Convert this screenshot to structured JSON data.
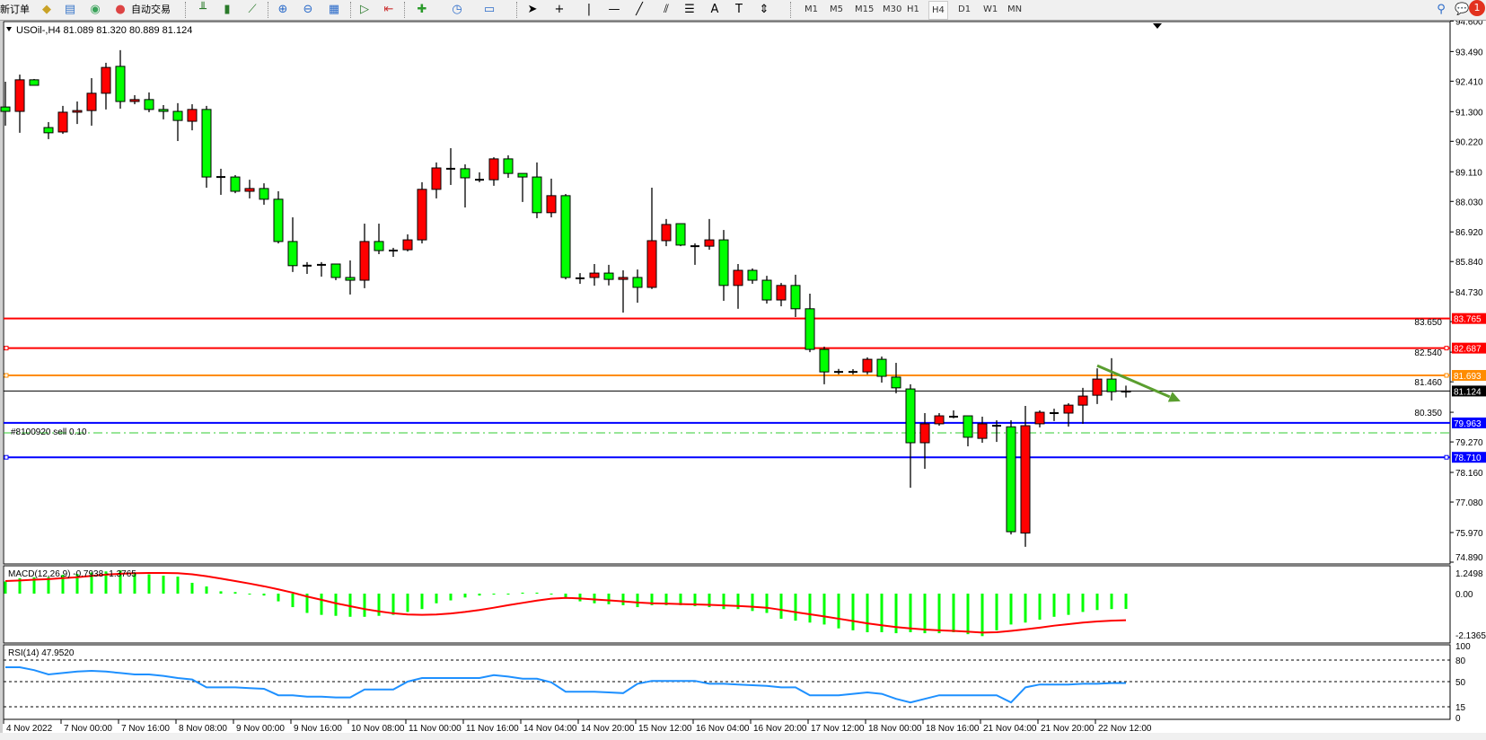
{
  "toolbar": {
    "new_order": "新订单",
    "auto_trading": "自动交易",
    "timeframes": [
      "M1",
      "M5",
      "M15",
      "M30",
      "H1",
      "H4",
      "D1",
      "W1",
      "MN"
    ],
    "active_timeframe": "H4",
    "notification_count": "1",
    "icons": [
      "folder-icon",
      "market-watch-icon",
      "signal-icon",
      "auto-trading-icon",
      "bar-chart-icon",
      "candlestick-icon",
      "line-chart-icon",
      "zoom-in-icon",
      "zoom-out-icon",
      "tile-windows-icon",
      "autoscroll-icon",
      "chart-shift-icon",
      "indicators-icon",
      "periods-icon",
      "templates-icon",
      "cursor-icon",
      "crosshair-icon",
      "vertical-line-icon",
      "horizontal-line-icon",
      "trendline-icon",
      "equidistant-channel-icon",
      "fibonacci-icon",
      "text-icon",
      "text-label-icon",
      "arrows-icon",
      "search-icon",
      "notification-icon"
    ]
  },
  "chart_header": "USOil-,H4  81.089 81.320 80.889 81.124",
  "order_label": "#8100920 sell 0.10",
  "macd_label": "MACD(12,26,9) -0.7938 -1.3765",
  "rsi_label": "RSI(14) 47.9520",
  "colors": {
    "bull": "#ff0000",
    "bear": "#00ff00",
    "macd_hist": "#00ff00",
    "macd_signal": "#ff0000",
    "rsi": "#1e90ff",
    "arrow": "#5a9e2f"
  },
  "chart_data": {
    "type": "candlestick",
    "symbol": "USOil-",
    "timeframe": "H4",
    "ylim": [
      74.89,
      94.6
    ],
    "y_ticks": [
      "94.600",
      "93.490",
      "92.410",
      "91.300",
      "90.220",
      "89.110",
      "88.030",
      "86.920",
      "85.840",
      "84.730",
      "83.650",
      "82.540",
      "81.460",
      "80.350",
      "79.270",
      "78.160",
      "77.080",
      "75.970",
      "74.890"
    ],
    "x_tick_labels": [
      "4 Nov 2022",
      "7 Nov 00:00",
      "7 Nov 16:00",
      "8 Nov 08:00",
      "9 Nov 00:00",
      "9 Nov 16:00",
      "10 Nov 08:00",
      "11 Nov 00:00",
      "11 Nov 16:00",
      "14 Nov 04:00",
      "14 Nov 20:00",
      "15 Nov 12:00",
      "16 Nov 04:00",
      "16 Nov 20:00",
      "17 Nov 12:00",
      "18 Nov 00:00",
      "18 Nov 16:00",
      "21 Nov 04:00",
      "21 Nov 20:00",
      "22 Nov 12:00"
    ],
    "x_tick_every_bars": 4,
    "ohlc": [
      [
        91.47,
        92.39,
        90.79,
        91.31
      ],
      [
        91.31,
        92.65,
        90.53,
        92.46
      ],
      [
        92.46,
        92.49,
        92.26,
        92.26
      ],
      [
        90.72,
        90.92,
        90.3,
        90.53
      ],
      [
        90.56,
        91.51,
        90.49,
        91.28
      ],
      [
        91.28,
        91.67,
        90.85,
        91.34
      ],
      [
        91.34,
        92.52,
        90.79,
        91.97
      ],
      [
        91.97,
        93.08,
        91.38,
        92.91
      ],
      [
        92.95,
        93.54,
        91.41,
        91.67
      ],
      [
        91.67,
        91.9,
        91.57,
        91.74
      ],
      [
        91.74,
        92.0,
        91.28,
        91.38
      ],
      [
        91.38,
        91.54,
        91.02,
        91.31
      ],
      [
        91.31,
        91.61,
        90.23,
        90.98
      ],
      [
        90.95,
        91.57,
        90.62,
        91.38
      ],
      [
        91.38,
        91.51,
        88.53,
        88.92
      ],
      [
        88.92,
        89.22,
        88.27,
        88.92
      ],
      [
        88.92,
        88.99,
        88.33,
        88.4
      ],
      [
        88.4,
        88.82,
        88.14,
        88.5
      ],
      [
        88.5,
        88.69,
        87.91,
        88.11
      ],
      [
        88.11,
        88.4,
        86.5,
        86.57
      ],
      [
        86.57,
        87.45,
        85.46,
        85.69
      ],
      [
        85.69,
        85.82,
        85.39,
        85.69
      ],
      [
        85.72,
        85.82,
        85.29,
        85.72
      ],
      [
        85.75,
        85.75,
        85.16,
        85.26
      ],
      [
        85.26,
        85.88,
        84.64,
        85.16
      ],
      [
        85.16,
        87.22,
        84.87,
        86.57
      ],
      [
        86.57,
        87.22,
        86.11,
        86.24
      ],
      [
        86.24,
        86.34,
        86.01,
        86.24
      ],
      [
        86.27,
        86.83,
        86.21,
        86.63
      ],
      [
        86.63,
        88.73,
        86.5,
        88.47
      ],
      [
        88.47,
        89.45,
        88.14,
        89.25
      ],
      [
        89.22,
        89.97,
        88.63,
        89.22
      ],
      [
        89.22,
        89.38,
        87.81,
        88.89
      ],
      [
        88.82,
        89.09,
        88.73,
        88.82
      ],
      [
        88.82,
        89.64,
        88.6,
        89.58
      ],
      [
        89.58,
        89.71,
        88.89,
        89.05
      ],
      [
        89.05,
        89.05,
        88.01,
        88.92
      ],
      [
        88.92,
        89.45,
        87.42,
        87.62
      ],
      [
        87.62,
        88.86,
        87.45,
        88.24
      ],
      [
        88.24,
        88.3,
        85.19,
        85.26
      ],
      [
        85.23,
        85.42,
        85.03,
        85.23
      ],
      [
        85.26,
        85.75,
        84.96,
        85.42
      ],
      [
        85.42,
        85.72,
        84.97,
        85.19
      ],
      [
        85.19,
        85.52,
        83.98,
        85.26
      ],
      [
        85.26,
        85.55,
        84.34,
        84.9
      ],
      [
        84.9,
        88.53,
        84.84,
        86.6
      ],
      [
        86.6,
        87.39,
        86.4,
        87.19
      ],
      [
        87.22,
        87.22,
        86.4,
        86.44
      ],
      [
        86.4,
        86.5,
        85.72,
        86.4
      ],
      [
        86.4,
        87.39,
        86.27,
        86.63
      ],
      [
        86.63,
        86.99,
        84.41,
        84.97
      ],
      [
        84.97,
        85.75,
        84.12,
        85.52
      ],
      [
        85.52,
        85.59,
        85.03,
        85.16
      ],
      [
        85.16,
        85.32,
        84.31,
        84.44
      ],
      [
        84.44,
        85.06,
        84.21,
        84.97
      ],
      [
        84.97,
        85.36,
        83.82,
        84.12
      ],
      [
        84.12,
        84.67,
        82.54,
        82.64
      ],
      [
        82.64,
        82.74,
        81.37,
        81.82
      ],
      [
        81.82,
        81.93,
        81.73,
        81.82
      ],
      [
        81.82,
        81.92,
        81.73,
        81.82
      ],
      [
        81.82,
        82.35,
        81.73,
        82.28
      ],
      [
        82.28,
        82.38,
        81.43,
        81.66
      ],
      [
        81.63,
        82.15,
        81.04,
        81.24
      ],
      [
        81.2,
        81.37,
        77.6,
        79.24
      ],
      [
        79.24,
        80.32,
        78.29,
        79.93
      ],
      [
        79.93,
        80.32,
        79.86,
        80.22
      ],
      [
        80.19,
        80.42,
        80.13,
        80.19
      ],
      [
        80.22,
        80.22,
        79.11,
        79.44
      ],
      [
        79.4,
        80.19,
        79.24,
        79.93
      ],
      [
        79.86,
        80.06,
        79.27,
        79.86
      ],
      [
        79.82,
        80.06,
        75.9,
        76.0
      ],
      [
        75.95,
        80.58,
        75.45,
        79.86
      ],
      [
        79.93,
        80.42,
        79.8,
        80.35
      ],
      [
        80.32,
        80.48,
        80.03,
        80.32
      ],
      [
        80.32,
        80.68,
        79.83,
        80.61
      ],
      [
        80.61,
        81.24,
        79.93,
        80.94
      ],
      [
        80.97,
        81.95,
        80.65,
        81.56
      ],
      [
        81.56,
        82.32,
        80.78,
        81.1
      ],
      [
        81.089,
        81.32,
        80.889,
        81.124
      ]
    ],
    "levels": [
      {
        "price": 83.765,
        "label": "83.765",
        "color": "#ff0000",
        "handle": false
      },
      {
        "price": 82.687,
        "label": "82.687",
        "color": "#ff0000",
        "handle": true
      },
      {
        "price": 81.693,
        "label": "81.693",
        "color": "#ff8c00",
        "handle": true
      },
      {
        "price": 81.124,
        "label": "81.124",
        "color": "#000000",
        "handle": false,
        "thin": true
      },
      {
        "price": 79.963,
        "label": "79.963",
        "color": "#0000ff",
        "handle": false
      },
      {
        "price": 78.71,
        "label": "78.710",
        "color": "#0000ff",
        "handle": true
      }
    ],
    "order_line_price": 79.6,
    "arrow": {
      "from": {
        "bar": 76,
        "price": 82.05
      },
      "to": {
        "bar": 81.8,
        "price": 80.75
      }
    },
    "macd": {
      "ylim": [
        -2.1365,
        1.2498
      ],
      "y_ticks": [
        "1.2498",
        "0.00",
        "-2.1365"
      ],
      "histogram": [
        0.63,
        0.8,
        0.84,
        0.85,
        0.98,
        1.02,
        1.1,
        1.15,
        1.2,
        1.1,
        1.0,
        0.93,
        0.88,
        0.56,
        0.37,
        0.12,
        0.08,
        0.0,
        -0.1,
        -0.4,
        -0.7,
        -1.0,
        -1.1,
        -1.15,
        -1.2,
        -1.2,
        -1.15,
        -1.1,
        -0.95,
        -0.8,
        -0.5,
        -0.35,
        -0.2,
        -0.1,
        -0.05,
        -0.02,
        0.05,
        0.05,
        0.0,
        -0.2,
        -0.4,
        -0.5,
        -0.55,
        -0.6,
        -0.7,
        -0.6,
        -0.6,
        -0.6,
        -0.65,
        -0.7,
        -0.8,
        -0.8,
        -0.9,
        -1.0,
        -1.3,
        -1.4,
        -1.5,
        -1.6,
        -1.8,
        -1.9,
        -2.0,
        -2.0,
        -2.05,
        -2.0,
        -2.05,
        -2.05,
        -2.0,
        -2.1,
        -2.2,
        -1.9,
        -1.6,
        -1.5,
        -1.35,
        -1.2,
        -1.1,
        -0.95,
        -0.85,
        -0.8,
        -0.7938
      ],
      "signal": [
        0.65,
        0.68,
        0.72,
        0.75,
        0.8,
        0.85,
        0.92,
        0.98,
        1.03,
        1.06,
        1.07,
        1.07,
        1.06,
        1.0,
        0.9,
        0.78,
        0.65,
        0.52,
        0.38,
        0.22,
        0.05,
        -0.15,
        -0.32,
        -0.5,
        -0.65,
        -0.8,
        -0.92,
        -1.02,
        -1.08,
        -1.1,
        -1.08,
        -1.03,
        -0.95,
        -0.85,
        -0.73,
        -0.6,
        -0.48,
        -0.36,
        -0.26,
        -0.22,
        -0.25,
        -0.3,
        -0.35,
        -0.4,
        -0.46,
        -0.5,
        -0.52,
        -0.54,
        -0.56,
        -0.58,
        -0.61,
        -0.64,
        -0.68,
        -0.73,
        -0.84,
        -0.96,
        -1.07,
        -1.18,
        -1.3,
        -1.42,
        -1.54,
        -1.64,
        -1.73,
        -1.8,
        -1.86,
        -1.9,
        -1.93,
        -1.97,
        -2.02,
        -2.0,
        -1.93,
        -1.85,
        -1.76,
        -1.66,
        -1.58,
        -1.5,
        -1.44,
        -1.4,
        -1.3765
      ]
    },
    "rsi": {
      "ylim": [
        0,
        100
      ],
      "y_ticks": [
        "100",
        "80",
        "50",
        "15",
        "0"
      ],
      "levels": [
        80,
        50,
        15
      ],
      "values": [
        70,
        70,
        66,
        60,
        62,
        64,
        65,
        64,
        62,
        60,
        60,
        58,
        55,
        53,
        42,
        42,
        42,
        41,
        40,
        31,
        31,
        29,
        29,
        28,
        28,
        39,
        39,
        39,
        50,
        55,
        55,
        55,
        55,
        55,
        59,
        57,
        54,
        54,
        49,
        36,
        36,
        36,
        35,
        34,
        47,
        51,
        51,
        51,
        51,
        47,
        47,
        46,
        45,
        44,
        42,
        42,
        31,
        31,
        31,
        33,
        35,
        33,
        26,
        21,
        26,
        31,
        31,
        31,
        31,
        31,
        21,
        42,
        46,
        46,
        46,
        47,
        47,
        48,
        47.952
      ]
    }
  }
}
